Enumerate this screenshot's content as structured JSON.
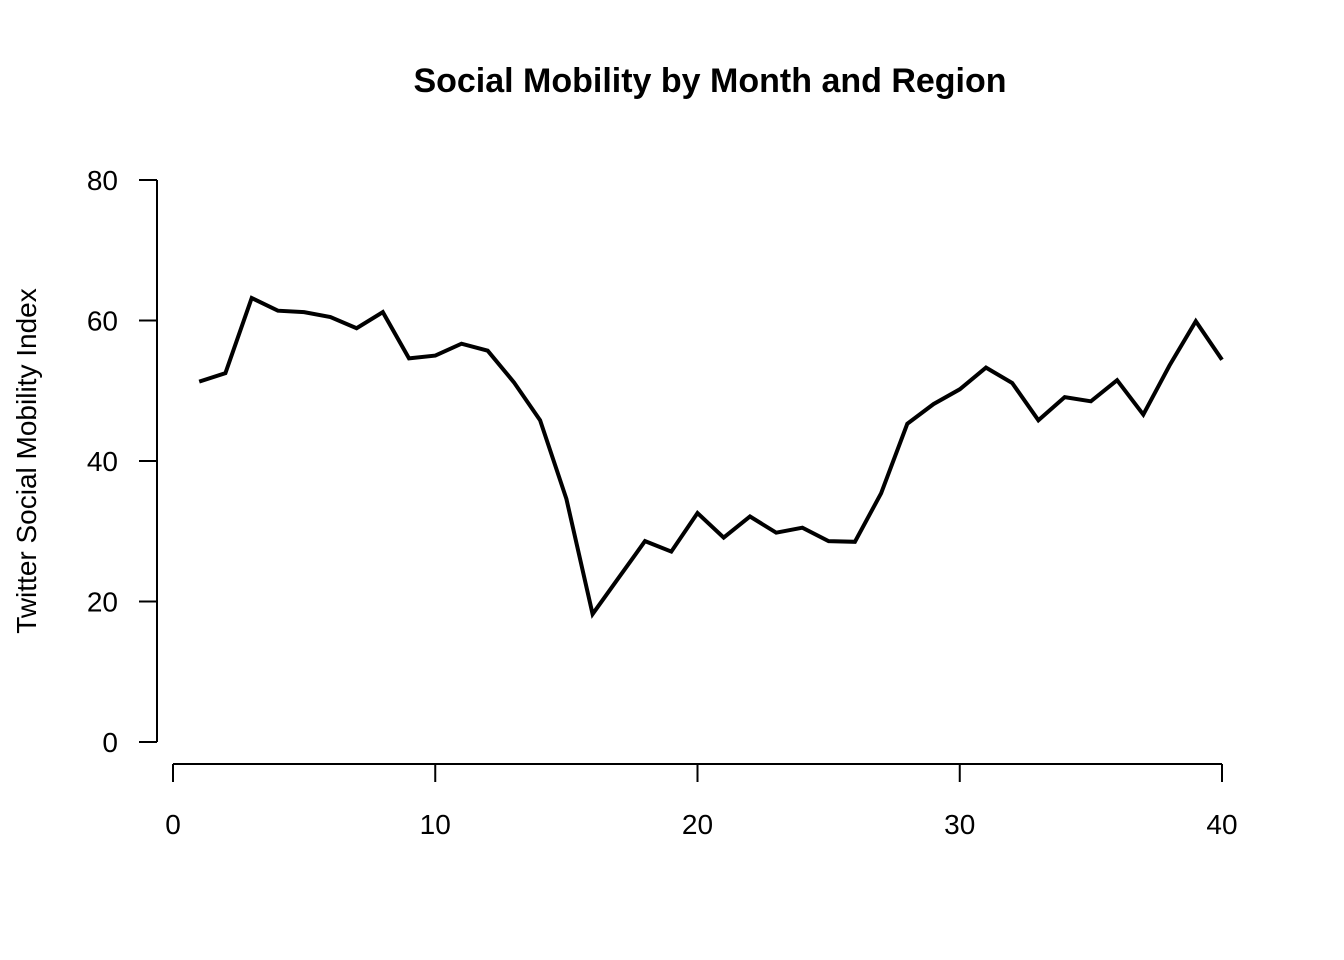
{
  "chart_data": {
    "type": "line",
    "title": "Social Mobility by Month and Region",
    "xlabel": "",
    "ylabel": "Twitter Social Mobility Index",
    "xlim": [
      0,
      40
    ],
    "ylim": [
      0,
      80
    ],
    "x_ticks": [
      0,
      10,
      20,
      30,
      40
    ],
    "y_ticks": [
      0,
      20,
      40,
      60,
      80
    ],
    "grid": false,
    "legend": "none",
    "line_color": "#000000",
    "series": [
      {
        "x": [
          1,
          2,
          3,
          4,
          5,
          6,
          7,
          8,
          9,
          10,
          11,
          12,
          13,
          14,
          15,
          16,
          17,
          18,
          19,
          20,
          21,
          22,
          23,
          24,
          25,
          26,
          27,
          28,
          29,
          30,
          31,
          32,
          33,
          34,
          35,
          36,
          37,
          38,
          39,
          40
        ],
        "values": [
          51.3,
          52.5,
          63.2,
          61.4,
          61.2,
          60.5,
          58.9,
          61.2,
          54.6,
          55.0,
          56.7,
          55.7,
          51.2,
          45.8,
          34.6,
          18.2,
          23.4,
          28.6,
          27.1,
          32.6,
          29.1,
          32.1,
          29.8,
          30.5,
          28.6,
          28.5,
          35.4,
          45.3,
          48.1,
          50.2,
          53.3,
          51.1,
          45.8,
          49.1,
          48.5,
          51.5,
          46.6,
          53.6,
          59.9,
          54.4
        ]
      }
    ]
  }
}
